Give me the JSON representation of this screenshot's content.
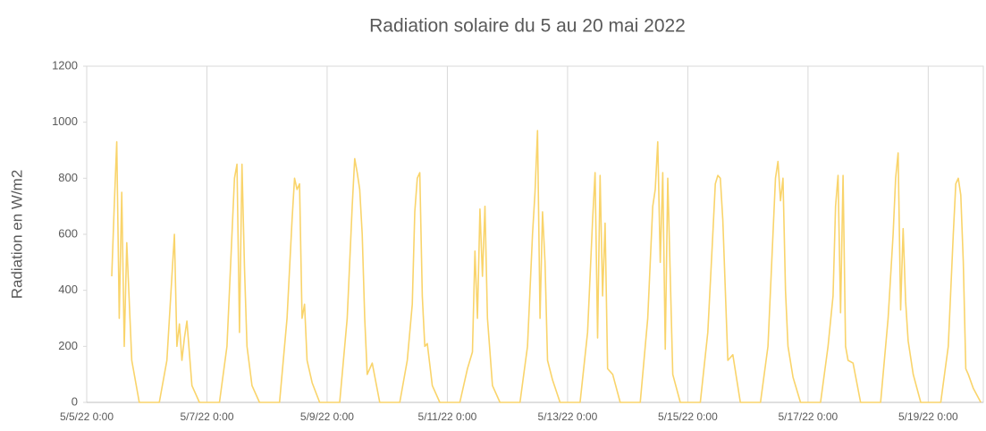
{
  "chart_data": {
    "type": "line",
    "title": "Radiation solaire du 5 au 20 mai 2022",
    "ylabel": "Radiation en W/m2",
    "x": [
      "5/5/22 10:00",
      "5/5/22 11:00",
      "5/5/22 12:00",
      "5/5/22 13:00",
      "5/5/22 14:00",
      "5/5/22 15:00",
      "5/5/22 16:00",
      "5/5/22 18:00",
      "5/5/22 21:00",
      "5/6/22 5:00",
      "5/6/22 8:00",
      "5/6/22 10:00",
      "5/6/22 11:00",
      "5/6/22 12:00",
      "5/6/22 13:00",
      "5/6/22 14:00",
      "5/6/22 15:00",
      "5/6/22 16:00",
      "5/6/22 18:00",
      "5/6/22 21:00",
      "5/7/22 5:00",
      "5/7/22 8:00",
      "5/7/22 10:00",
      "5/7/22 11:00",
      "5/7/22 12:00",
      "5/7/22 13:00",
      "5/7/22 14:00",
      "5/7/22 15:00",
      "5/7/22 16:00",
      "5/7/22 18:00",
      "5/7/22 21:00",
      "5/8/22 5:00",
      "5/8/22 8:00",
      "5/8/22 10:00",
      "5/8/22 11:00",
      "5/8/22 12:00",
      "5/8/22 13:00",
      "5/8/22 14:00",
      "5/8/22 15:00",
      "5/8/22 16:00",
      "5/8/22 18:00",
      "5/8/22 21:00",
      "5/9/22 5:00",
      "5/9/22 8:00",
      "5/9/22 10:00",
      "5/9/22 11:00",
      "5/9/22 12:00",
      "5/9/22 13:00",
      "5/9/22 14:00",
      "5/9/22 15:00",
      "5/9/22 16:00",
      "5/9/22 18:00",
      "5/9/22 21:00",
      "5/10/22 5:00",
      "5/10/22 8:00",
      "5/10/22 10:00",
      "5/10/22 11:00",
      "5/10/22 12:00",
      "5/10/22 13:00",
      "5/10/22 14:00",
      "5/10/22 15:00",
      "5/10/22 16:00",
      "5/10/22 18:00",
      "5/10/22 21:00",
      "5/11/22 5:00",
      "5/11/22 8:00",
      "5/11/22 10:00",
      "5/11/22 11:00",
      "5/11/22 12:00",
      "5/11/22 13:00",
      "5/11/22 14:00",
      "5/11/22 15:00",
      "5/11/22 16:00",
      "5/11/22 18:00",
      "5/11/22 21:00",
      "5/12/22 5:00",
      "5/12/22 8:00",
      "5/12/22 10:00",
      "5/12/22 11:00",
      "5/12/22 12:00",
      "5/12/22 13:00",
      "5/12/22 14:00",
      "5/12/22 15:00",
      "5/12/22 16:00",
      "5/12/22 18:00",
      "5/12/22 21:00",
      "5/13/22 5:00",
      "5/13/22 8:00",
      "5/13/22 10:00",
      "5/13/22 11:00",
      "5/13/22 12:00",
      "5/13/22 13:00",
      "5/13/22 14:00",
      "5/13/22 15:00",
      "5/13/22 16:00",
      "5/13/22 18:00",
      "5/13/22 21:00",
      "5/14/22 5:00",
      "5/14/22 8:00",
      "5/14/22 10:00",
      "5/14/22 11:00",
      "5/14/22 12:00",
      "5/14/22 13:00",
      "5/14/22 14:00",
      "5/14/22 15:00",
      "5/14/22 16:00",
      "5/14/22 18:00",
      "5/14/22 21:00",
      "5/15/22 5:00",
      "5/15/22 8:00",
      "5/15/22 10:00",
      "5/15/22 11:00",
      "5/15/22 12:00",
      "5/15/22 13:00",
      "5/15/22 14:00",
      "5/15/22 15:00",
      "5/15/22 16:00",
      "5/15/22 18:00",
      "5/15/22 21:00",
      "5/16/22 5:00",
      "5/16/22 8:00",
      "5/16/22 10:00",
      "5/16/22 11:00",
      "5/16/22 12:00",
      "5/16/22 13:00",
      "5/16/22 14:00",
      "5/16/22 15:00",
      "5/16/22 16:00",
      "5/16/22 18:00",
      "5/16/22 21:00",
      "5/17/22 5:00",
      "5/17/22 8:00",
      "5/17/22 10:00",
      "5/17/22 11:00",
      "5/17/22 12:00",
      "5/17/22 13:00",
      "5/17/22 14:00",
      "5/17/22 15:00",
      "5/17/22 16:00",
      "5/17/22 18:00",
      "5/17/22 21:00",
      "5/18/22 5:00",
      "5/18/22 8:00",
      "5/18/22 10:00",
      "5/18/22 11:00",
      "5/18/22 12:00",
      "5/18/22 13:00",
      "5/18/22 14:00",
      "5/18/22 15:00",
      "5/18/22 16:00",
      "5/18/22 18:00",
      "5/18/22 21:00",
      "5/19/22 5:00",
      "5/19/22 8:00",
      "5/19/22 10:00",
      "5/19/22 11:00",
      "5/19/22 12:00",
      "5/19/22 13:00",
      "5/19/22 14:00",
      "5/19/22 15:00",
      "5/19/22 16:00",
      "5/19/22 18:00",
      "5/19/22 21:00"
    ],
    "series": [
      {
        "name": "Radiation",
        "color": "#f9d46b",
        "values": [
          450,
          700,
          930,
          300,
          750,
          200,
          570,
          150,
          0,
          0,
          150,
          450,
          600,
          200,
          280,
          150,
          230,
          290,
          60,
          0,
          0,
          200,
          600,
          800,
          850,
          250,
          850,
          480,
          200,
          60,
          0,
          0,
          300,
          650,
          800,
          760,
          780,
          300,
          350,
          150,
          70,
          0,
          0,
          300,
          700,
          870,
          820,
          760,
          600,
          300,
          100,
          140,
          0,
          0,
          150,
          350,
          680,
          800,
          820,
          380,
          200,
          210,
          60,
          0,
          0,
          120,
          180,
          540,
          300,
          690,
          450,
          700,
          300,
          60,
          0,
          0,
          200,
          600,
          750,
          970,
          300,
          680,
          500,
          150,
          80,
          0,
          0,
          250,
          650,
          820,
          230,
          810,
          380,
          640,
          120,
          100,
          0,
          0,
          300,
          700,
          760,
          930,
          500,
          820,
          190,
          800,
          100,
          0,
          0,
          250,
          600,
          780,
          810,
          800,
          650,
          400,
          150,
          170,
          0,
          0,
          200,
          600,
          800,
          860,
          720,
          800,
          400,
          200,
          90,
          0,
          0,
          200,
          380,
          700,
          810,
          320,
          810,
          200,
          150,
          140,
          0,
          0,
          300,
          600,
          800,
          890,
          330,
          620,
          360,
          220,
          100,
          0,
          0,
          200,
          600,
          780,
          800,
          740,
          500,
          120,
          100,
          50,
          0
        ]
      }
    ],
    "xlim": [
      "5/5/22 0:00",
      "5/19/22 22:00"
    ],
    "xticks": [
      "5/5/22 0:00",
      "5/7/22 0:00",
      "5/9/22 0:00",
      "5/11/22 0:00",
      "5/13/22 0:00",
      "5/15/22 0:00",
      "5/17/22 0:00",
      "5/19/22 0:00"
    ],
    "ylim": [
      0,
      1200
    ],
    "yticks": [
      0,
      200,
      400,
      600,
      800,
      1000,
      1200
    ],
    "xgrid": true
  }
}
